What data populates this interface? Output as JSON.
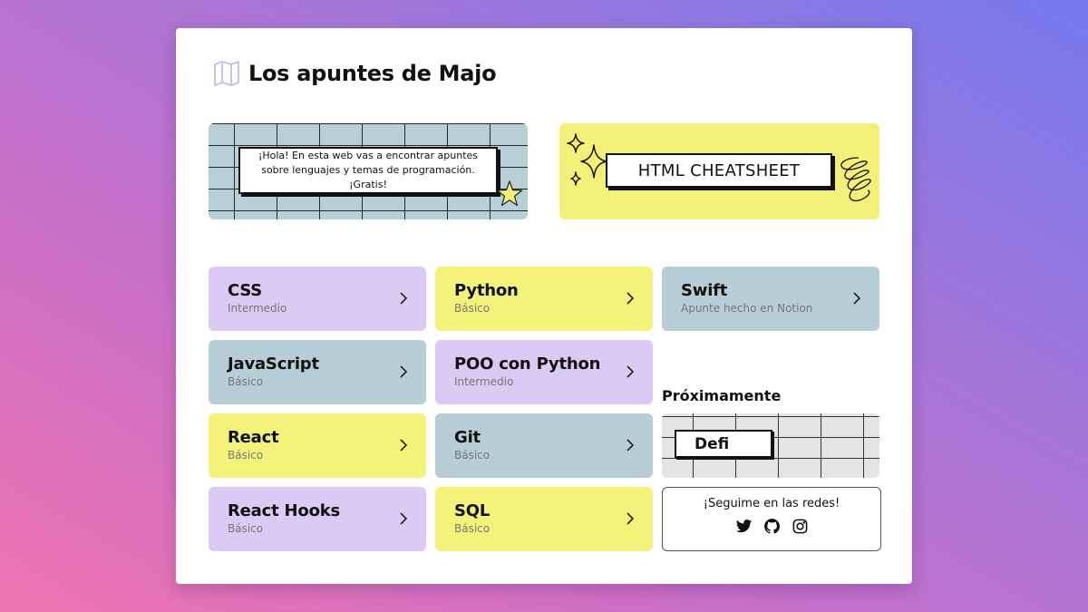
{
  "site": {
    "title": "Los apuntes de Majo",
    "logo_icon": "map-icon"
  },
  "banners": {
    "intro_text": "¡Hola! En esta web vas a encontrar apuntes sobre lenguajes y temas de programación. ¡Gratis!",
    "cheatsheet_label": "HTML CHEATSHEET"
  },
  "courses": [
    {
      "title": "CSS",
      "level": "Intermedio",
      "color": "#dacaf4"
    },
    {
      "title": "Python",
      "level": "Básico",
      "color": "#f3f27a"
    },
    {
      "title": "Swift",
      "level": "Apunte hecho en Notion",
      "color": "#b7ced6"
    },
    {
      "title": "JavaScript",
      "level": "Básico",
      "color": "#b7ced6"
    },
    {
      "title": "POO con Python",
      "level": "Intermedio",
      "color": "#dacaf4"
    },
    {
      "title": "React",
      "level": "Básico",
      "color": "#f3f27a"
    },
    {
      "title": "Git",
      "level": "Básico",
      "color": "#b7ced6"
    },
    {
      "title": "React Hooks",
      "level": "Básico",
      "color": "#dacaf4"
    },
    {
      "title": "SQL",
      "level": "Básico",
      "color": "#f3f27a"
    }
  ],
  "upcoming": {
    "label": "Próximamente",
    "item": "Defi"
  },
  "social": {
    "title": "¡Seguime en las redes!",
    "icons": [
      "twitter-icon",
      "github-icon",
      "instagram-icon"
    ]
  }
}
